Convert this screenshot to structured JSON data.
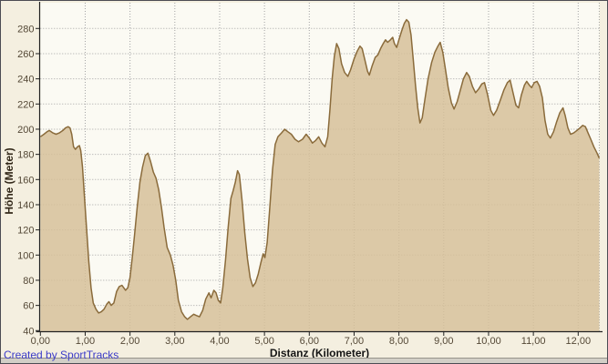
{
  "chart_data": {
    "type": "area",
    "title": "",
    "xlabel": "Distanz (Kilometer)",
    "ylabel": "Höhe (Meter)",
    "xlim": [
      0,
      12.47
    ],
    "ylim": [
      40,
      300
    ],
    "grid": true,
    "legend": "none",
    "x_ticks": [
      {
        "value": 0,
        "label": "0,00"
      },
      {
        "value": 1,
        "label": "1,00"
      },
      {
        "value": 2,
        "label": "2,00"
      },
      {
        "value": 3,
        "label": "3,00"
      },
      {
        "value": 4,
        "label": "4,00"
      },
      {
        "value": 5,
        "label": "5,00"
      },
      {
        "value": 6,
        "label": "6,00"
      },
      {
        "value": 7,
        "label": "7,00"
      },
      {
        "value": 8,
        "label": "8,00"
      },
      {
        "value": 9,
        "label": "9,00"
      },
      {
        "value": 10,
        "label": "10,00"
      },
      {
        "value": 11,
        "label": "11,00"
      },
      {
        "value": 12,
        "label": "12,00"
      }
    ],
    "y_ticks": [
      {
        "value": 40,
        "label": "40"
      },
      {
        "value": 60,
        "label": "60"
      },
      {
        "value": 80,
        "label": "80"
      },
      {
        "value": 100,
        "label": "100"
      },
      {
        "value": 120,
        "label": "120"
      },
      {
        "value": 140,
        "label": "140"
      },
      {
        "value": 160,
        "label": "160"
      },
      {
        "value": 180,
        "label": "180"
      },
      {
        "value": 200,
        "label": "200"
      },
      {
        "value": 220,
        "label": "220"
      },
      {
        "value": 240,
        "label": "240"
      },
      {
        "value": 260,
        "label": "260"
      },
      {
        "value": 280,
        "label": "280"
      }
    ],
    "series": [
      {
        "name": "Höhe",
        "points": [
          [
            0.0,
            194
          ],
          [
            0.08,
            196
          ],
          [
            0.15,
            198
          ],
          [
            0.2,
            199
          ],
          [
            0.28,
            197
          ],
          [
            0.35,
            196
          ],
          [
            0.42,
            197
          ],
          [
            0.5,
            199
          ],
          [
            0.56,
            201
          ],
          [
            0.62,
            202
          ],
          [
            0.66,
            201
          ],
          [
            0.7,
            196
          ],
          [
            0.74,
            186
          ],
          [
            0.78,
            184
          ],
          [
            0.83,
            186
          ],
          [
            0.87,
            187
          ],
          [
            0.9,
            183
          ],
          [
            0.94,
            170
          ],
          [
            0.98,
            148
          ],
          [
            1.03,
            122
          ],
          [
            1.08,
            95
          ],
          [
            1.13,
            74
          ],
          [
            1.18,
            62
          ],
          [
            1.24,
            57
          ],
          [
            1.3,
            54
          ],
          [
            1.36,
            55
          ],
          [
            1.42,
            57
          ],
          [
            1.48,
            61
          ],
          [
            1.53,
            63
          ],
          [
            1.58,
            60
          ],
          [
            1.64,
            62
          ],
          [
            1.7,
            71
          ],
          [
            1.76,
            75
          ],
          [
            1.82,
            76
          ],
          [
            1.86,
            74
          ],
          [
            1.9,
            72
          ],
          [
            1.95,
            74
          ],
          [
            2.0,
            82
          ],
          [
            2.05,
            98
          ],
          [
            2.1,
            116
          ],
          [
            2.16,
            138
          ],
          [
            2.22,
            158
          ],
          [
            2.28,
            170
          ],
          [
            2.34,
            179
          ],
          [
            2.4,
            181
          ],
          [
            2.46,
            174
          ],
          [
            2.52,
            166
          ],
          [
            2.58,
            161
          ],
          [
            2.64,
            152
          ],
          [
            2.7,
            138
          ],
          [
            2.76,
            122
          ],
          [
            2.83,
            106
          ],
          [
            2.9,
            100
          ],
          [
            2.96,
            92
          ],
          [
            3.02,
            80
          ],
          [
            3.08,
            64
          ],
          [
            3.15,
            55
          ],
          [
            3.22,
            51
          ],
          [
            3.28,
            49
          ],
          [
            3.35,
            51
          ],
          [
            3.42,
            53
          ],
          [
            3.48,
            52
          ],
          [
            3.55,
            51
          ],
          [
            3.62,
            56
          ],
          [
            3.69,
            65
          ],
          [
            3.76,
            70
          ],
          [
            3.81,
            66
          ],
          [
            3.87,
            72
          ],
          [
            3.92,
            70
          ],
          [
            3.97,
            64
          ],
          [
            4.02,
            62
          ],
          [
            4.07,
            74
          ],
          [
            4.13,
            96
          ],
          [
            4.19,
            122
          ],
          [
            4.25,
            145
          ],
          [
            4.3,
            151
          ],
          [
            4.35,
            158
          ],
          [
            4.4,
            167
          ],
          [
            4.44,
            164
          ],
          [
            4.5,
            143
          ],
          [
            4.56,
            118
          ],
          [
            4.62,
            97
          ],
          [
            4.68,
            82
          ],
          [
            4.74,
            75
          ],
          [
            4.8,
            78
          ],
          [
            4.86,
            85
          ],
          [
            4.92,
            94
          ],
          [
            4.97,
            101
          ],
          [
            5.01,
            98
          ],
          [
            5.06,
            110
          ],
          [
            5.12,
            138
          ],
          [
            5.18,
            168
          ],
          [
            5.24,
            188
          ],
          [
            5.3,
            194
          ],
          [
            5.38,
            197
          ],
          [
            5.45,
            200
          ],
          [
            5.52,
            198
          ],
          [
            5.6,
            196
          ],
          [
            5.68,
            192
          ],
          [
            5.76,
            190
          ],
          [
            5.85,
            192
          ],
          [
            5.93,
            196
          ],
          [
            6.0,
            193
          ],
          [
            6.07,
            189
          ],
          [
            6.14,
            191
          ],
          [
            6.21,
            194
          ],
          [
            6.28,
            189
          ],
          [
            6.35,
            186
          ],
          [
            6.41,
            194
          ],
          [
            6.46,
            215
          ],
          [
            6.51,
            240
          ],
          [
            6.56,
            258
          ],
          [
            6.61,
            268
          ],
          [
            6.66,
            264
          ],
          [
            6.72,
            252
          ],
          [
            6.79,
            245
          ],
          [
            6.86,
            242
          ],
          [
            6.92,
            247
          ],
          [
            7.0,
            256
          ],
          [
            7.07,
            262
          ],
          [
            7.13,
            266
          ],
          [
            7.18,
            264
          ],
          [
            7.24,
            255
          ],
          [
            7.3,
            246
          ],
          [
            7.34,
            243
          ],
          [
            7.4,
            250
          ],
          [
            7.47,
            257
          ],
          [
            7.53,
            259
          ],
          [
            7.59,
            264
          ],
          [
            7.65,
            268
          ],
          [
            7.7,
            271
          ],
          [
            7.75,
            269
          ],
          [
            7.81,
            271
          ],
          [
            7.86,
            273
          ],
          [
            7.9,
            268
          ],
          [
            7.95,
            265
          ],
          [
            8.0,
            271
          ],
          [
            8.06,
            278
          ],
          [
            8.12,
            284
          ],
          [
            8.17,
            287
          ],
          [
            8.22,
            285
          ],
          [
            8.27,
            275
          ],
          [
            8.32,
            255
          ],
          [
            8.37,
            235
          ],
          [
            8.42,
            217
          ],
          [
            8.47,
            205
          ],
          [
            8.52,
            209
          ],
          [
            8.58,
            224
          ],
          [
            8.65,
            240
          ],
          [
            8.73,
            253
          ],
          [
            8.8,
            261
          ],
          [
            8.87,
            266
          ],
          [
            8.92,
            269
          ],
          [
            8.98,
            261
          ],
          [
            9.04,
            247
          ],
          [
            9.1,
            233
          ],
          [
            9.17,
            221
          ],
          [
            9.23,
            216
          ],
          [
            9.3,
            222
          ],
          [
            9.37,
            231
          ],
          [
            9.44,
            240
          ],
          [
            9.51,
            245
          ],
          [
            9.57,
            242
          ],
          [
            9.64,
            234
          ],
          [
            9.71,
            229
          ],
          [
            9.78,
            232
          ],
          [
            9.85,
            236
          ],
          [
            9.91,
            237
          ],
          [
            9.98,
            227
          ],
          [
            10.05,
            215
          ],
          [
            10.11,
            211
          ],
          [
            10.18,
            215
          ],
          [
            10.26,
            223
          ],
          [
            10.34,
            231
          ],
          [
            10.42,
            237
          ],
          [
            10.48,
            239
          ],
          [
            10.54,
            230
          ],
          [
            10.61,
            219
          ],
          [
            10.67,
            217
          ],
          [
            10.73,
            227
          ],
          [
            10.8,
            235
          ],
          [
            10.85,
            238
          ],
          [
            10.91,
            235
          ],
          [
            10.96,
            233
          ],
          [
            11.02,
            237
          ],
          [
            11.08,
            238
          ],
          [
            11.14,
            234
          ],
          [
            11.2,
            225
          ],
          [
            11.26,
            207
          ],
          [
            11.32,
            196
          ],
          [
            11.38,
            193
          ],
          [
            11.45,
            198
          ],
          [
            11.52,
            206
          ],
          [
            11.59,
            213
          ],
          [
            11.66,
            217
          ],
          [
            11.71,
            211
          ],
          [
            11.77,
            201
          ],
          [
            11.83,
            196
          ],
          [
            11.9,
            197
          ],
          [
            11.97,
            199
          ],
          [
            12.04,
            201
          ],
          [
            12.1,
            203
          ],
          [
            12.16,
            202
          ],
          [
            12.22,
            197
          ],
          [
            12.28,
            192
          ],
          [
            12.35,
            186
          ],
          [
            12.42,
            181
          ],
          [
            12.47,
            177
          ]
        ]
      }
    ],
    "colors": {
      "panel_bg": "#f4efe0",
      "plot_bg": "#fbfaf3",
      "fill": "#d6bf99",
      "outline": "#8a6b3b",
      "grid": "#a3a3a3",
      "axis": "#222222",
      "tick_label": "#544836"
    }
  },
  "footer": {
    "credit": "Created by SportTracks"
  }
}
